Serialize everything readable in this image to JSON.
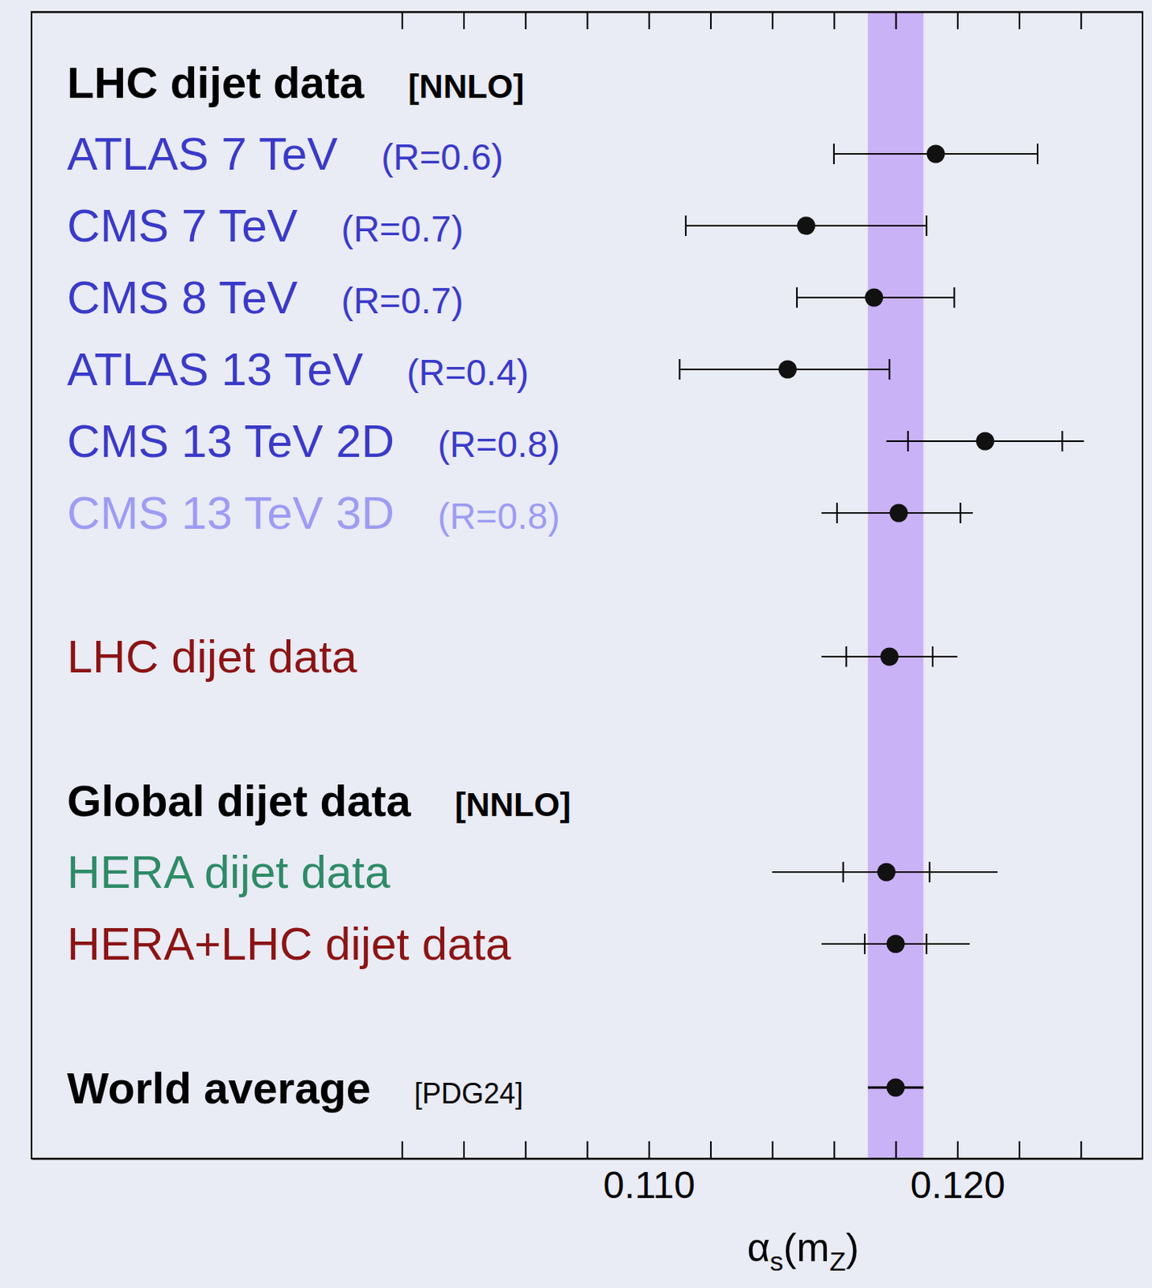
{
  "chart_data": {
    "type": "forest",
    "xlabel": "αs(mZ)",
    "xlim": [
      0.09,
      0.126
    ],
    "xticks": [
      {
        "value": 0.11,
        "label": "0.110"
      },
      {
        "value": 0.12,
        "label": "0.120"
      }
    ],
    "minor_xticks": [
      0.102,
      0.104,
      0.106,
      0.108,
      0.112,
      0.114,
      0.116,
      0.118,
      0.122,
      0.124
    ],
    "band": [
      0.1171,
      0.1189
    ],
    "band_color": "#c4a8f6",
    "rows": [
      {
        "type": "header",
        "label": "LHC dijet data",
        "note": "[NNLO]"
      },
      {
        "type": "measurement",
        "label": "ATLAS 7 TeV",
        "note": "(R=0.6)",
        "color": "#3a3ac8",
        "value": 0.1193,
        "err_minus": 0.0033,
        "err_plus": 0.0033
      },
      {
        "type": "measurement",
        "label": "CMS 7 TeV",
        "note": "(R=0.7)",
        "color": "#3a3ac8",
        "value": 0.1151,
        "err_minus": 0.0039,
        "err_plus": 0.0039
      },
      {
        "type": "measurement",
        "label": "CMS 8 TeV",
        "note": "(R=0.7)",
        "color": "#3a3ac8",
        "value": 0.1173,
        "err_minus": 0.0025,
        "err_plus": 0.0026
      },
      {
        "type": "measurement",
        "label": "ATLAS 13 TeV",
        "note": "(R=0.4)",
        "color": "#3a3ac8",
        "value": 0.1145,
        "err_minus": 0.0035,
        "err_plus": 0.0033
      },
      {
        "type": "measurement",
        "label": "CMS 13 TeV 2D",
        "note": "(R=0.8)",
        "color": "#3a3ac8",
        "value": 0.1209,
        "err_minus": 0.0032,
        "err_plus": 0.0032,
        "inner_err_minus": 0.0025,
        "inner_err_plus": 0.0025
      },
      {
        "type": "measurement",
        "label": "CMS 13 TeV 3D",
        "note": "(R=0.8)",
        "color": "#9d9cf2",
        "value": 0.1181,
        "err_minus": 0.0025,
        "err_plus": 0.0024,
        "inner_err_minus": 0.002,
        "inner_err_plus": 0.002
      },
      {
        "type": "combined",
        "label": "LHC dijet data",
        "color": "#8b1414",
        "value": 0.1178,
        "err_minus": 0.0022,
        "err_plus": 0.0022,
        "inner_err_minus": 0.0014,
        "inner_err_plus": 0.0014
      },
      {
        "type": "header",
        "label": "Global dijet data",
        "note": "[NNLO]"
      },
      {
        "type": "measurement",
        "label": "HERA dijet data",
        "color": "#2e8b66",
        "value": 0.1177,
        "err_minus": 0.0037,
        "err_plus": 0.0036,
        "inner_err_minus": 0.0014,
        "inner_err_plus": 0.0014
      },
      {
        "type": "measurement",
        "label": "HERA+LHC dijet data",
        "color": "#8b1414",
        "value": 0.118,
        "err_minus": 0.0024,
        "err_plus": 0.0024,
        "inner_err_minus": 0.001,
        "inner_err_plus": 0.001
      },
      {
        "type": "average",
        "label": "World average",
        "note": "[PDG24]",
        "value": 0.118,
        "err_minus": 0.0009,
        "err_plus": 0.0009
      }
    ]
  }
}
